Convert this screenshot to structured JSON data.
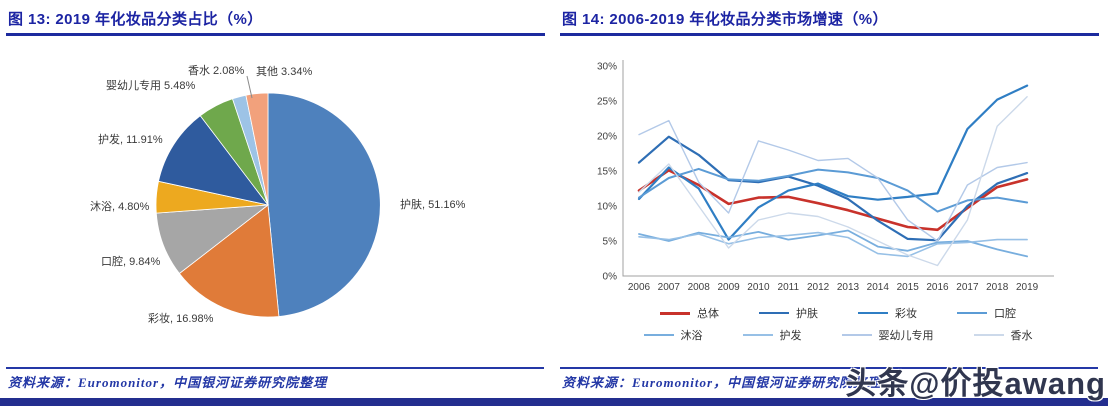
{
  "figure13": {
    "title": "图 13:  2019 年化妆品分类占比（%）",
    "source": "资料来源：Euromonitor，中国银河证券研究院整理"
  },
  "figure14": {
    "title": "图 14:  2006-2019 年化妆品分类市场增速（%）",
    "source": "资料来源：Euromonitor，中国银河证券研究院整理"
  },
  "watermark": "头条@价投awang",
  "colors": {
    "title_blue": "#1c24a3",
    "rule_navy": "#1c2a9e",
    "source_blue": "#2438a6",
    "bottom_bar": "#232e8f",
    "axis_gray": "#a0a0a0"
  },
  "chart_data": [
    {
      "type": "pie",
      "title": "2019 年化妆品分类占比（%）",
      "slices": [
        {
          "label": "护肤",
          "value": 51.16,
          "display": "护肤, 51.16%",
          "color": "#4e81bd"
        },
        {
          "label": "彩妆",
          "value": 16.98,
          "display": "彩妆, 16.98%",
          "color": "#e07b39"
        },
        {
          "label": "口腔",
          "value": 9.84,
          "display": "口腔, 9.84%",
          "color": "#a6a6a6"
        },
        {
          "label": "沐浴",
          "value": 4.8,
          "display": "沐浴, 4.80%",
          "color": "#eda91f"
        },
        {
          "label": "护发",
          "value": 11.91,
          "display": "护发, 11.91%",
          "color": "#2f5b9e"
        },
        {
          "label": "婴幼儿专用",
          "value": 5.48,
          "display": "婴幼儿专用 5.48%",
          "color": "#6fa84c"
        },
        {
          "label": "香水",
          "value": 2.08,
          "display": "香水 2.08%",
          "color": "#9dc3e6"
        },
        {
          "label": "其他",
          "value": 3.34,
          "display": "其他 3.34%",
          "color": "#f2a17c"
        }
      ]
    },
    {
      "type": "line",
      "title": "2006-2019 年化妆品分类市场增速（%）",
      "x": [
        2006,
        2007,
        2008,
        2009,
        2010,
        2011,
        2012,
        2013,
        2014,
        2015,
        2016,
        2017,
        2018,
        2019
      ],
      "ylim": [
        0,
        30
      ],
      "yticks": [
        "0%",
        "5%",
        "10%",
        "15%",
        "20%",
        "25%",
        "30%"
      ],
      "grid": false,
      "legend_position": "bottom",
      "values_note": "approximate, read from plot",
      "series": [
        {
          "name": "总体",
          "color": "#c8322b",
          "width": 2.6,
          "values": [
            12.2,
            15.1,
            13.0,
            10.3,
            11.2,
            11.3,
            10.4,
            9.4,
            8.2,
            7.0,
            6.6,
            9.7,
            12.7,
            13.8
          ]
        },
        {
          "name": "护肤",
          "color": "#2e6eb5",
          "width": 2.2,
          "values": [
            16.2,
            19.9,
            17.3,
            13.7,
            13.4,
            14.2,
            12.9,
            11.0,
            7.9,
            5.3,
            5.1,
            10.0,
            13.2,
            14.7
          ]
        },
        {
          "name": "彩妆",
          "color": "#2f7ec4",
          "width": 2.2,
          "values": [
            11.0,
            15.5,
            12.5,
            5.2,
            9.8,
            12.2,
            13.2,
            11.4,
            10.9,
            11.3,
            11.8,
            21.0,
            25.2,
            27.2
          ]
        },
        {
          "name": "口腔",
          "color": "#5b9bd5",
          "width": 2.0,
          "values": [
            11.2,
            14.0,
            15.3,
            13.8,
            13.6,
            14.3,
            15.2,
            14.8,
            14.0,
            12.2,
            9.2,
            10.8,
            11.2,
            10.5
          ]
        },
        {
          "name": "沐浴",
          "color": "#78aede",
          "width": 1.8,
          "values": [
            6.0,
            5.0,
            6.2,
            5.5,
            6.3,
            5.2,
            5.8,
            6.5,
            4.2,
            3.6,
            4.8,
            5.0,
            3.8,
            2.8
          ]
        },
        {
          "name": "护发",
          "color": "#97c0e6",
          "width": 1.6,
          "values": [
            5.6,
            5.2,
            6.0,
            4.6,
            5.5,
            5.8,
            6.2,
            5.5,
            3.2,
            2.8,
            4.6,
            4.8,
            5.2,
            5.2
          ]
        },
        {
          "name": "婴幼儿专用",
          "color": "#b3c9e8",
          "width": 1.4,
          "values": [
            20.2,
            22.2,
            13.4,
            9.0,
            19.3,
            18.0,
            16.5,
            16.8,
            14.0,
            8.0,
            5.0,
            13.0,
            15.5,
            16.2
          ]
        },
        {
          "name": "香水",
          "color": "#ccd9ea",
          "width": 1.4,
          "values": [
            12.0,
            16.0,
            10.0,
            4.0,
            8.0,
            9.0,
            8.5,
            7.0,
            5.0,
            3.0,
            1.5,
            8.0,
            21.4,
            25.6
          ]
        }
      ]
    }
  ]
}
